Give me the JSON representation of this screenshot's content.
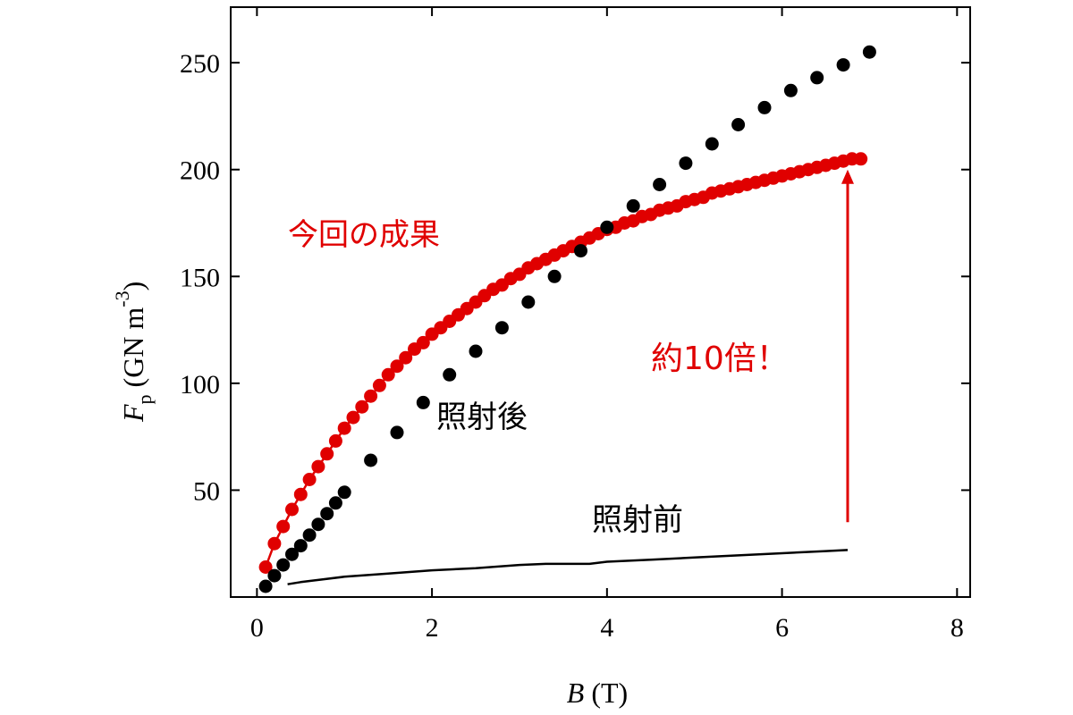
{
  "chart_data": {
    "type": "scatter",
    "xlabel": {
      "var": "B",
      "unit": " (T)"
    },
    "ylabel": {
      "var": "F",
      "sub": "p",
      "unit": " (GN m",
      "sup": "-3",
      "close": ")"
    },
    "xlim": [
      -0.3,
      8.15
    ],
    "ylim": [
      0,
      276
    ],
    "xticks": [
      0,
      2,
      4,
      6,
      8
    ],
    "yticks": [
      50,
      100,
      150,
      200,
      250
    ],
    "grid": false,
    "colors": {
      "red": "#e00000",
      "black": "#000000"
    },
    "series": [
      {
        "name": "今回の成果",
        "color": "#e00000",
        "style": "line+markers",
        "x": [
          0.1,
          0.2,
          0.3,
          0.4,
          0.5,
          0.6,
          0.7,
          0.8,
          0.9,
          1.0,
          1.1,
          1.2,
          1.3,
          1.4,
          1.5,
          1.6,
          1.7,
          1.8,
          1.9,
          2.0,
          2.1,
          2.2,
          2.3,
          2.4,
          2.5,
          2.6,
          2.7,
          2.8,
          2.9,
          3.0,
          3.1,
          3.2,
          3.3,
          3.4,
          3.5,
          3.6,
          3.7,
          3.8,
          3.9,
          4.0,
          4.1,
          4.2,
          4.3,
          4.4,
          4.5,
          4.6,
          4.7,
          4.8,
          4.9,
          5.0,
          5.1,
          5.2,
          5.3,
          5.4,
          5.5,
          5.6,
          5.7,
          5.8,
          5.9,
          6.0,
          6.1,
          6.2,
          6.3,
          6.4,
          6.5,
          6.6,
          6.7,
          6.8,
          6.9
        ],
        "y": [
          14,
          25,
          33,
          41,
          48,
          55,
          61,
          67,
          73,
          79,
          84,
          89,
          94,
          99,
          104,
          108,
          112,
          116,
          119,
          123,
          126,
          129,
          132,
          135,
          138,
          141,
          144,
          146,
          149,
          151,
          154,
          156,
          158,
          160,
          162,
          164,
          166,
          168,
          170,
          172,
          173,
          175,
          176,
          178,
          179,
          181,
          182,
          183,
          185,
          186,
          187,
          189,
          190,
          191,
          192,
          193,
          194,
          195,
          196,
          197,
          198,
          199,
          200,
          201,
          202,
          203,
          204,
          205,
          205
        ]
      },
      {
        "name": "照射後",
        "color": "#000000",
        "style": "markers",
        "x": [
          0.1,
          0.2,
          0.3,
          0.4,
          0.5,
          0.6,
          0.7,
          0.8,
          0.9,
          1.0,
          1.3,
          1.6,
          1.9,
          2.2,
          2.5,
          2.8,
          3.1,
          3.4,
          3.7,
          4.0,
          4.3,
          4.6,
          4.9,
          5.2,
          5.5,
          5.8,
          6.1,
          6.4,
          6.7,
          7.0
        ],
        "y": [
          5,
          10,
          15,
          20,
          24,
          29,
          34,
          39,
          44,
          49,
          64,
          77,
          91,
          104,
          115,
          126,
          138,
          150,
          162,
          173,
          183,
          193,
          203,
          212,
          221,
          229,
          237,
          243,
          249,
          255
        ]
      },
      {
        "name": "照射前",
        "color": "#000000",
        "style": "line",
        "x": [
          0.35,
          0.5,
          0.7,
          1.0,
          1.5,
          2.0,
          2.5,
          3.0,
          3.3,
          3.5,
          3.8,
          4.0,
          4.5,
          5.0,
          5.5,
          6.0,
          6.5,
          6.75
        ],
        "y": [
          6,
          7,
          8,
          9.5,
          11,
          12.5,
          13.5,
          15,
          15.5,
          15.5,
          15.5,
          16.5,
          17.5,
          18.5,
          19.5,
          20.5,
          21.5,
          22
        ]
      }
    ],
    "annotations": [
      {
        "text": "今回の成果",
        "color": "#e00000"
      },
      {
        "text": "照射後",
        "color": "#000000"
      },
      {
        "text": "照射前",
        "color": "#000000"
      },
      {
        "text": "約10倍！",
        "color": "#e00000"
      }
    ],
    "arrow": {
      "x": 6.75,
      "y_from": 35,
      "y_to": 200,
      "color": "#e00000"
    }
  }
}
